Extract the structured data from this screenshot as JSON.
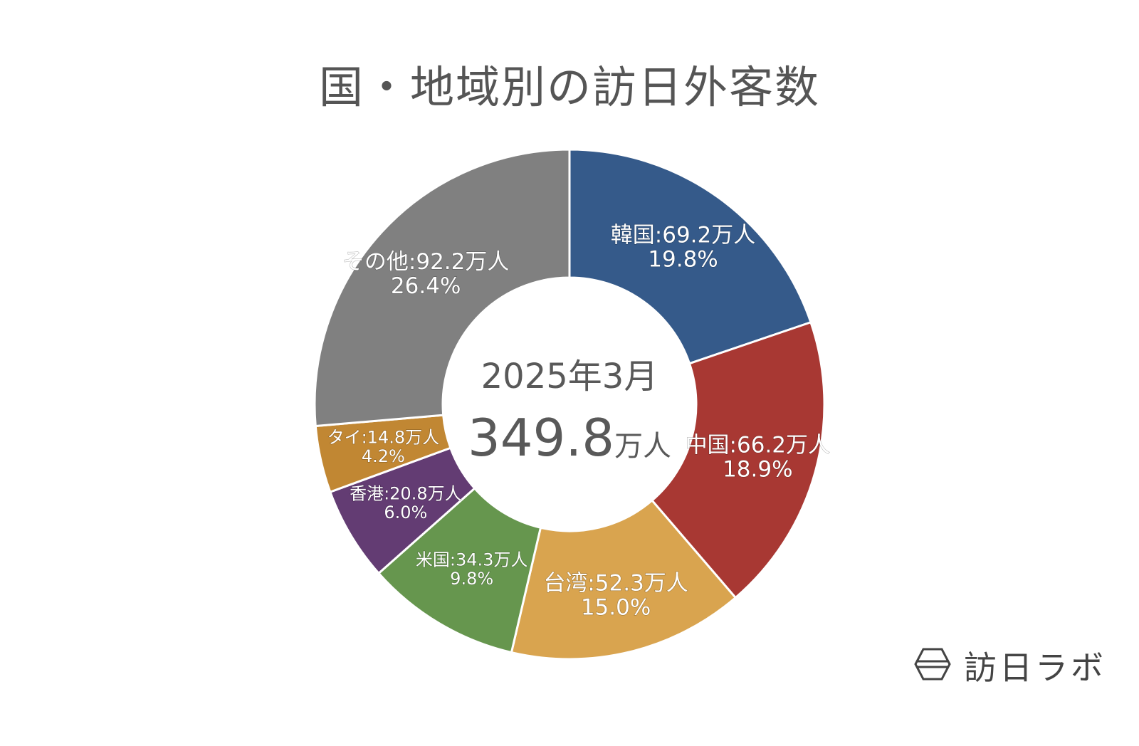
{
  "title": "国・地域別の訪日外客数",
  "center": {
    "period": "2025年3月",
    "total_number": "349.8",
    "total_unit": "万人"
  },
  "brand": {
    "name": "訪日ラボ",
    "icon": "hexagon-logo-icon"
  },
  "chart_data": {
    "type": "pie",
    "style": "donut",
    "unit": "万人",
    "slices": [
      {
        "label": "韓国",
        "value": 69.2,
        "percent": "19.8%",
        "text": "韓国:69.2万人",
        "color": "#355A8A"
      },
      {
        "label": "中国",
        "value": 66.2,
        "percent": "18.9%",
        "text": "中国:66.2万人",
        "color": "#A83833"
      },
      {
        "label": "台湾",
        "value": 52.3,
        "percent": "15.0%",
        "text": "台湾:52.3万人",
        "color": "#D9A44F"
      },
      {
        "label": "米国",
        "value": 34.3,
        "percent": "9.8%",
        "text": "米国:34.3万人",
        "color": "#66964E"
      },
      {
        "label": "香港",
        "value": 20.8,
        "percent": "6.0%",
        "text": "香港:20.8万人",
        "color": "#633C73"
      },
      {
        "label": "タイ",
        "value": 14.8,
        "percent": "4.2%",
        "text": "タイ:14.8万人",
        "color": "#C18733"
      },
      {
        "label": "その他",
        "value": 92.2,
        "percent": "26.4%",
        "text": "その他:92.2万人",
        "color": "#808080"
      }
    ]
  }
}
